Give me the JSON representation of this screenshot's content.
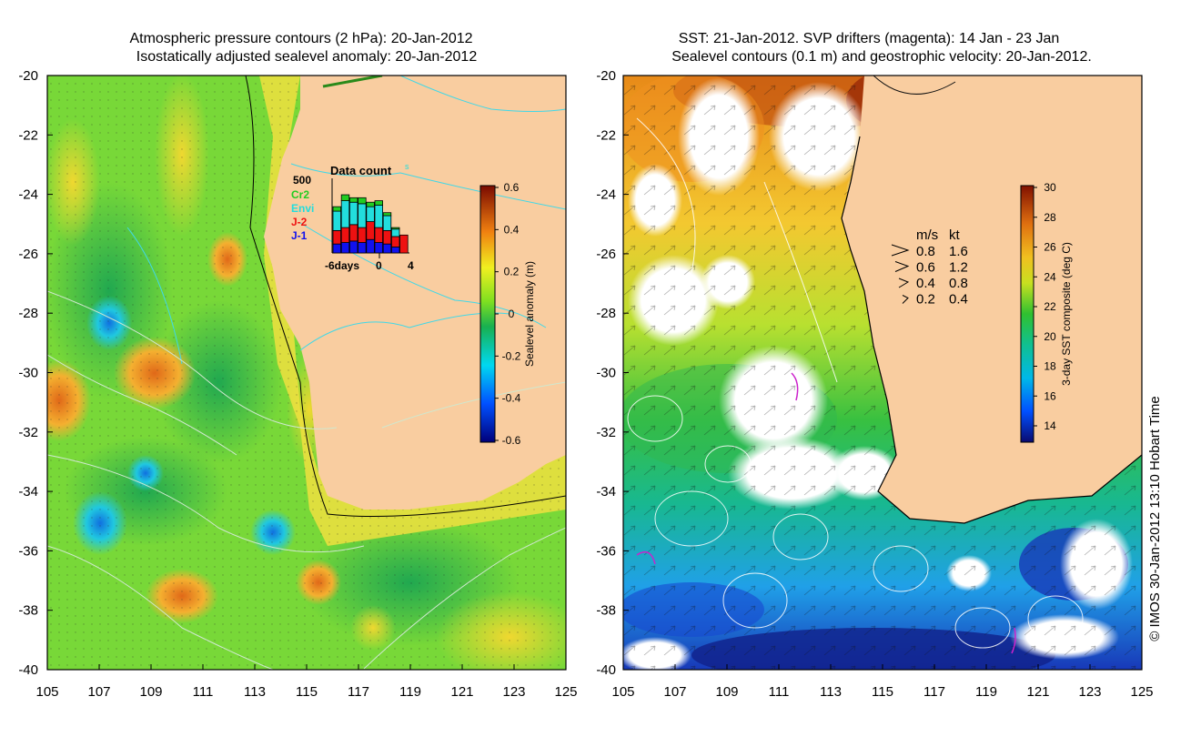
{
  "left_panel": {
    "title_line1": "Atmospheric pressure contours (2 hPa): 20-Jan-2012",
    "title_line2": "Isostatically adjusted sealevel anomaly: 20-Jan-2012",
    "y_ticks": [
      "-20",
      "-22",
      "-24",
      "-26",
      "-28",
      "-30",
      "-32",
      "-34",
      "-36",
      "-38",
      "-40"
    ],
    "x_ticks": [
      "105",
      "107",
      "109",
      "111",
      "113",
      "115",
      "117",
      "119",
      "121",
      "123",
      "125"
    ],
    "colorbar": {
      "label": "Sealevel anomaly (m)",
      "ticks": [
        "0.6",
        "0.4",
        "0.2",
        "0",
        "-0.2",
        "-0.4",
        "-0.6"
      ]
    },
    "data_count": {
      "title": "Data count",
      "superscript": "s",
      "max_label": "500",
      "xlabel_left": "-6days",
      "xlabel_mid": "0",
      "xlabel_right": "4",
      "legend": [
        {
          "name": "Cr2",
          "color": "#22cc22"
        },
        {
          "name": "Envi",
          "color": "#22dddd"
        },
        {
          "name": "J-2",
          "color": "#ee1111"
        },
        {
          "name": "J-1",
          "color": "#1111ee"
        }
      ],
      "bars": [
        {
          "j1": 60,
          "j2": 90,
          "envi": 130,
          "cr2": 30
        },
        {
          "j1": 70,
          "j2": 100,
          "envi": 180,
          "cr2": 40
        },
        {
          "j1": 80,
          "j2": 110,
          "envi": 150,
          "cr2": 30
        },
        {
          "j1": 70,
          "j2": 100,
          "envi": 160,
          "cr2": 40
        },
        {
          "j1": 90,
          "j2": 120,
          "envi": 100,
          "cr2": 30
        },
        {
          "j1": 70,
          "j2": 100,
          "envi": 150,
          "cr2": 30
        },
        {
          "j1": 60,
          "j2": 90,
          "envi": 100,
          "cr2": 20
        },
        {
          "j1": 40,
          "j2": 70,
          "envi": 50,
          "cr2": 10
        },
        {
          "j1": 0,
          "j2": 120,
          "envi": 0,
          "cr2": 0
        }
      ]
    }
  },
  "right_panel": {
    "title_line1": "SST: 21-Jan-2012. SVP drifters (magenta): 14 Jan - 23 Jan",
    "title_line2": "Sealevel contours (0.1 m) and geostrophic velocity: 20-Jan-2012.",
    "y_ticks": [
      "-20",
      "-22",
      "-24",
      "-26",
      "-28",
      "-30",
      "-32",
      "-34",
      "-36",
      "-38",
      "-40"
    ],
    "x_ticks": [
      "105",
      "107",
      "109",
      "111",
      "113",
      "115",
      "117",
      "119",
      "121",
      "123",
      "125"
    ],
    "colorbar": {
      "label": "3-day SST composite (deg C)",
      "ticks": [
        "30",
        "28",
        "26",
        "24",
        "22",
        "20",
        "18",
        "16",
        "14"
      ]
    },
    "velocity_legend": {
      "header_ms": "m/s",
      "header_kt": "kt",
      "rows": [
        {
          "ms": "0.8",
          "kt": "1.6"
        },
        {
          "ms": "0.6",
          "kt": "1.2"
        },
        {
          "ms": "0.4",
          "kt": "0.8"
        },
        {
          "ms": "0.2",
          "kt": "0.4"
        }
      ]
    }
  },
  "credit": "© IMOS 30-Jan-2012 13:10 Hobart Time"
}
